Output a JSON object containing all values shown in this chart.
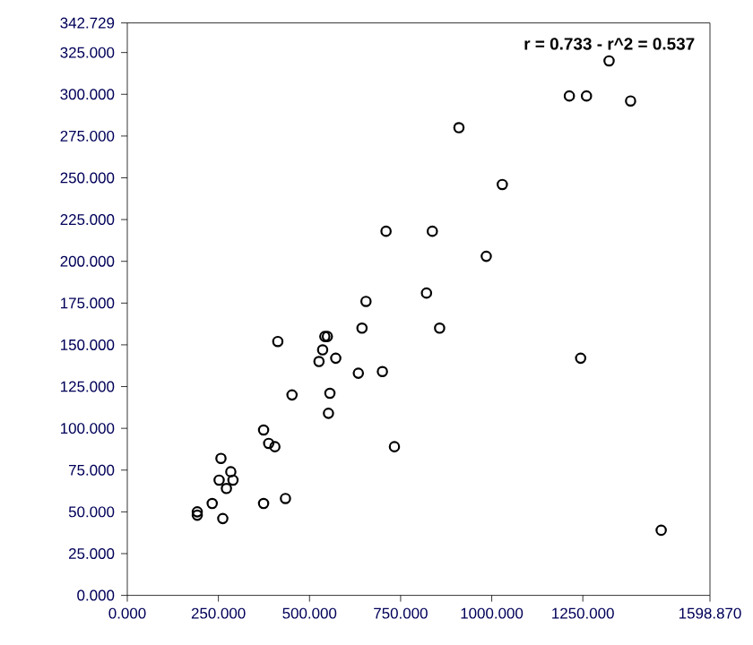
{
  "chart_data": {
    "type": "scatter",
    "annotations": [
      "r = 0.733 - r^2 = 0.537"
    ],
    "x": [
      1322,
      1213,
      1260,
      1381,
      910,
      1029,
      710,
      837,
      985,
      821,
      655,
      644,
      857,
      413,
      542,
      549,
      536,
      526,
      572,
      1244,
      634,
      700,
      452,
      556,
      552,
      374,
      388,
      405,
      733,
      257,
      284,
      252,
      290,
      272,
      374,
      434,
      233,
      192,
      192,
      262,
      1465
    ],
    "values": [
      320,
      299,
      299,
      296,
      280,
      246,
      218,
      218,
      203,
      181,
      176,
      160,
      160,
      152,
      155,
      155,
      147,
      140,
      142,
      142,
      133,
      134,
      120,
      121,
      109,
      99,
      91,
      89,
      89,
      82,
      74,
      69,
      69,
      64,
      55,
      58,
      55,
      50,
      48,
      46,
      39
    ],
    "color": "#000000",
    "marker": "circle",
    "xlim": [
      0,
      1598.87
    ],
    "ylim": [
      0,
      342.729
    ],
    "xticks": [
      {
        "value": 0,
        "label": "0.000"
      },
      {
        "value": 250,
        "label": "250.000"
      },
      {
        "value": 500,
        "label": "500.000"
      },
      {
        "value": 750,
        "label": "750.000"
      },
      {
        "value": 1000,
        "label": "1000.000"
      },
      {
        "value": 1250,
        "label": "1250.000"
      },
      {
        "value": 1598.87,
        "label": "1598.870"
      }
    ],
    "yticks": [
      {
        "value": 0,
        "label": "0.000"
      },
      {
        "value": 25,
        "label": "25.000"
      },
      {
        "value": 50,
        "label": "50.000"
      },
      {
        "value": 75,
        "label": "75.000"
      },
      {
        "value": 100,
        "label": "100.000"
      },
      {
        "value": 125,
        "label": "125.000"
      },
      {
        "value": 150,
        "label": "150.000"
      },
      {
        "value": 175,
        "label": "175.000"
      },
      {
        "value": 200,
        "label": "200.000"
      },
      {
        "value": 225,
        "label": "225.000"
      },
      {
        "value": 250,
        "label": "250.000"
      },
      {
        "value": 275,
        "label": "275.000"
      },
      {
        "value": 300,
        "label": "300.000"
      },
      {
        "value": 325,
        "label": "325.000"
      },
      {
        "value": 342.729,
        "label": "342.729"
      }
    ],
    "grid": false
  }
}
